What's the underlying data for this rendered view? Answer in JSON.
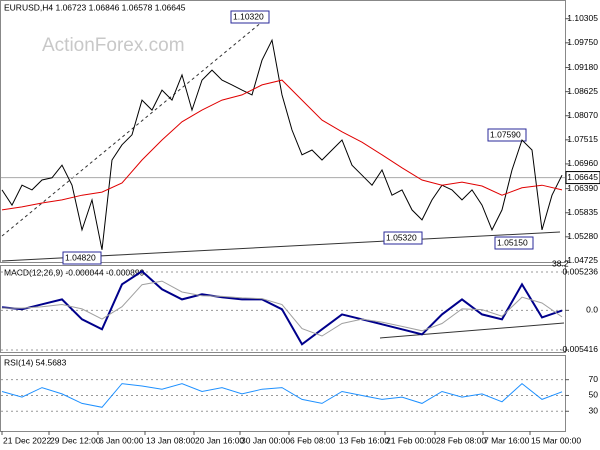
{
  "chart_data": [
    {
      "type": "line",
      "title": "EURUSD,H4 1.06723 1.06846 1.06578 1.06645",
      "watermark": "ActionForex.com",
      "current_price": 1.06645,
      "ylim": [
        1.047,
        1.1069
      ],
      "xlim": [
        0,
        56
      ],
      "yticks": [
        1.10305,
        {
          "value": 1.0975,
          "label": "1.09750"
        },
        {
          "value": 1.0918,
          "label": "1.09180"
        },
        1.08625,
        {
          "value": 1.0807,
          "label": "1.08070"
        },
        1.07515,
        {
          "value": 1.0696,
          "label": "1.06960"
        },
        {
          "value": 1.0639,
          "label": "1.06390"
        },
        1.05835,
        {
          "value": 1.0528,
          "label": "1.05280"
        },
        1.04725
      ],
      "annotations": [
        "1.10320",
        "1.04820",
        "1.05320",
        "1.07590",
        "1.05150",
        "38.2"
      ],
      "grid": false,
      "series": [
        {
          "color": "#000000",
          "line_width": 1,
          "x": [
            0,
            1,
            2,
            3,
            4,
            5,
            6,
            7,
            8,
            9,
            10,
            11,
            12,
            13,
            14,
            15,
            16,
            17,
            18,
            19,
            20,
            21,
            22,
            23,
            24,
            25,
            26,
            27,
            28,
            29,
            30,
            31,
            32,
            33,
            34,
            35,
            36,
            37,
            38,
            39,
            40,
            41,
            42,
            43,
            44,
            45,
            46,
            47,
            48,
            49,
            50,
            51,
            52,
            53,
            54,
            55,
            56
          ],
          "values": [
            1.0636,
            1.0601,
            1.0647,
            1.0636,
            1.0659,
            1.0664,
            1.0693,
            1.0647,
            1.0544,
            1.0613,
            1.0498,
            1.0705,
            1.074,
            1.0763,
            1.0843,
            1.082,
            1.0866,
            1.0843,
            1.0901,
            1.082,
            1.0889,
            1.0912,
            1.0889,
            1.0878,
            1.0866,
            1.0855,
            1.0935,
            1.0981,
            1.0855,
            1.0774,
            1.0717,
            1.0728,
            1.0705,
            1.0728,
            1.0751,
            1.0693,
            1.067,
            1.0647,
            1.0682,
            1.0624,
            1.0636,
            1.059,
            1.0567,
            1.0613,
            1.0647,
            1.0636,
            1.0613,
            1.0636,
            1.0601,
            1.0544,
            1.059,
            1.0682,
            1.0751,
            1.0728,
            1.0544,
            1.0624,
            1.067
          ]
        },
        {
          "color": "#e00000",
          "line_width": 1,
          "x": [
            0,
            2,
            4,
            6,
            8,
            10,
            12,
            14,
            16,
            18,
            20,
            22,
            24,
            26,
            28,
            30,
            32,
            34,
            36,
            38,
            40,
            42,
            44,
            46,
            48,
            50,
            52,
            54,
            56
          ],
          "values": [
            1.059,
            1.0597,
            1.0606,
            1.0613,
            1.0624,
            1.0631,
            1.0652,
            1.0705,
            1.0751,
            1.0793,
            1.082,
            1.0843,
            1.0855,
            1.0878,
            1.0889,
            1.0843,
            1.0797,
            1.077,
            1.0746,
            1.0717,
            1.0687,
            1.0659,
            1.0647,
            1.0654,
            1.0645,
            1.0624,
            1.0641,
            1.0647,
            1.0636
          ]
        }
      ]
    },
    {
      "type": "line",
      "title": "MACD(12,26,9) -0.000044 -0.000899",
      "ylim": [
        -0.00569,
        0.006056
      ],
      "xlim": [
        0,
        56
      ],
      "yticks": [
        0.005236,
        {
          "value": 0,
          "label": "0.0"
        },
        -0.005416
      ],
      "grid": true,
      "series": [
        {
          "color": "#00008b",
          "line_width": 2,
          "x": [
            0,
            2,
            4,
            6,
            8,
            10,
            12,
            14,
            16,
            18,
            20,
            22,
            24,
            26,
            28,
            30,
            32,
            34,
            36,
            38,
            40,
            42,
            44,
            46,
            48,
            50,
            52,
            54,
            56
          ],
          "values": [
            0.00041,
            0.00014,
            0.00082,
            0.0015,
            -0.00123,
            -0.00259,
            0.00355,
            0.00533,
            0.00287,
            0.0015,
            0.00219,
            0.00178,
            0.0015,
            0.0015,
            0.00014,
            -0.00464,
            -0.00259,
            -0.00055,
            -0.00123,
            -0.00191,
            -0.00259,
            -0.00328,
            -0.00055,
            0.0015,
            -0.00055,
            -0.00123,
            0.00355,
            -0.00096,
            -4e-05
          ]
        },
        {
          "color": "#a0a0a0",
          "line_width": 1,
          "x": [
            0,
            2,
            4,
            6,
            8,
            10,
            12,
            14,
            16,
            18,
            20,
            22,
            24,
            26,
            28,
            30,
            32,
            34,
            36,
            38,
            40,
            42,
            44,
            46,
            48,
            50,
            52,
            54,
            56
          ],
          "values": [
            0.0003,
            0.0003,
            0.0005,
            0.0008,
            0.0002,
            -0.0012,
            0.0005,
            0.0035,
            0.004,
            0.0025,
            0.002,
            0.0019,
            0.0017,
            0.0016,
            0.0008,
            -0.0025,
            -0.0035,
            -0.0018,
            -0.0012,
            -0.0016,
            -0.0022,
            -0.0028,
            -0.0018,
            0.0002,
            0.0001,
            -0.0008,
            0.0018,
            0.001,
            -0.0009
          ]
        }
      ]
    },
    {
      "type": "line",
      "title": "RSI(14) 54.5683",
      "ylim": [
        5,
        100
      ],
      "xlim": [
        0,
        56
      ],
      "yticks": [
        70,
        50,
        30
      ],
      "grid": true,
      "xticks": [
        {
          "value": 0,
          "label": "21 Dec 2022"
        },
        {
          "value": 4.7,
          "label": "29 Dec 12:00"
        },
        {
          "value": 9.6,
          "label": "6 Jan 00:00"
        },
        {
          "value": 14.3,
          "label": "13 Jan 08:00"
        },
        {
          "value": 19.2,
          "label": "20 Jan 16:00"
        },
        {
          "value": 23.8,
          "label": "30 Jan 00:00"
        },
        {
          "value": 28.7,
          "label": "6 Feb 08:00"
        },
        {
          "value": 33.6,
          "label": "13 Feb 16:00"
        },
        {
          "value": 38.3,
          "label": "21 Feb 00:00"
        },
        {
          "value": 43.3,
          "label": "28 Feb 08:00"
        },
        {
          "value": 48.1,
          "label": "7 Mar 16:00"
        },
        {
          "value": 52.8,
          "label": "15 Mar 00:00"
        }
      ],
      "series": [
        {
          "color": "#1e90ff",
          "line_width": 1,
          "x": [
            0,
            2,
            4,
            6,
            8,
            10,
            12,
            14,
            16,
            18,
            20,
            22,
            24,
            26,
            28,
            30,
            32,
            34,
            36,
            38,
            40,
            42,
            44,
            46,
            48,
            50,
            52,
            54,
            56
          ],
          "values": [
            55,
            48,
            60,
            52,
            40,
            35,
            65,
            62,
            58,
            65,
            55,
            60,
            52,
            58,
            60,
            45,
            40,
            55,
            50,
            45,
            48,
            40,
            55,
            48,
            52,
            42,
            65,
            45,
            54.6
          ]
        }
      ]
    }
  ]
}
